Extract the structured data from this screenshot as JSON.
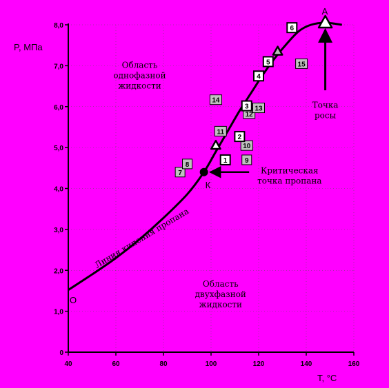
{
  "chart_data": {
    "type": "line",
    "xlabel": "T, °C",
    "ylabel": "P, МПа",
    "xlim": [
      40,
      160
    ],
    "ylim": [
      0,
      8
    ],
    "x_ticks": [
      "40",
      "60",
      "80",
      "100",
      "120",
      "140",
      "160"
    ],
    "y_ticks": [
      "0",
      "1,0",
      "2,0",
      "3,0",
      "4,0",
      "5,0",
      "6,0",
      "7,0",
      "8,0"
    ],
    "grid": true,
    "series": [
      {
        "name": "Линия кипения пропана",
        "points": [
          [
            40,
            1.52
          ],
          [
            50,
            1.9
          ],
          [
            60,
            2.3
          ],
          [
            70,
            2.76
          ],
          [
            80,
            3.28
          ],
          [
            90,
            3.86
          ],
          [
            97,
            4.4
          ],
          [
            102,
            4.9
          ],
          [
            107,
            5.4
          ],
          [
            112,
            5.9
          ],
          [
            117,
            6.35
          ],
          [
            122,
            6.8
          ],
          [
            127,
            7.2
          ],
          [
            132,
            7.55
          ],
          [
            137,
            7.85
          ],
          [
            142,
            8.0
          ],
          [
            148,
            8.05
          ],
          [
            155,
            8.0
          ]
        ]
      }
    ],
    "annotations": {
      "origin_label": "О",
      "origin": [
        40,
        1.52
      ],
      "critical_point_label": "К",
      "critical_point": [
        97,
        4.4
      ],
      "critical_text": [
        "Критическая",
        "точка пропана"
      ],
      "critical_arrow_from": [
        116,
        4.4
      ],
      "dew_point_label": "А",
      "dew_point": [
        148,
        8.05
      ],
      "dew_text": [
        "Точка",
        "росы"
      ],
      "dew_arrow_from": [
        148,
        6.4
      ],
      "region_single_phase": [
        "Область",
        "однофазной",
        "жидкости"
      ],
      "region_two_phase": [
        "Область",
        "двухфазной",
        "жидкости"
      ],
      "boiling_line_label": "Линия кипения пропана",
      "triangles": [
        [
          102,
          5.05
        ],
        [
          128,
          7.35
        ]
      ]
    },
    "points_white": [
      {
        "label": "1",
        "x": 106,
        "y": 4.7
      },
      {
        "label": "2",
        "x": 112,
        "y": 5.27
      },
      {
        "label": "3",
        "x": 115,
        "y": 6.02
      },
      {
        "label": "4",
        "x": 120,
        "y": 6.75
      },
      {
        "label": "5",
        "x": 124,
        "y": 7.1
      },
      {
        "label": "6",
        "x": 134,
        "y": 7.93
      }
    ],
    "points_gray": [
      {
        "label": "7",
        "x": 87,
        "y": 4.4
      },
      {
        "label": "8",
        "x": 90,
        "y": 4.6
      },
      {
        "label": "9",
        "x": 115,
        "y": 4.7
      },
      {
        "label": "10",
        "x": 115,
        "y": 5.05
      },
      {
        "label": "11",
        "x": 104,
        "y": 5.4
      },
      {
        "label": "12",
        "x": 116,
        "y": 5.83
      },
      {
        "label": "13",
        "x": 120,
        "y": 5.97
      },
      {
        "label": "14",
        "x": 102,
        "y": 6.17
      },
      {
        "label": "15",
        "x": 138,
        "y": 7.05
      }
    ]
  }
}
